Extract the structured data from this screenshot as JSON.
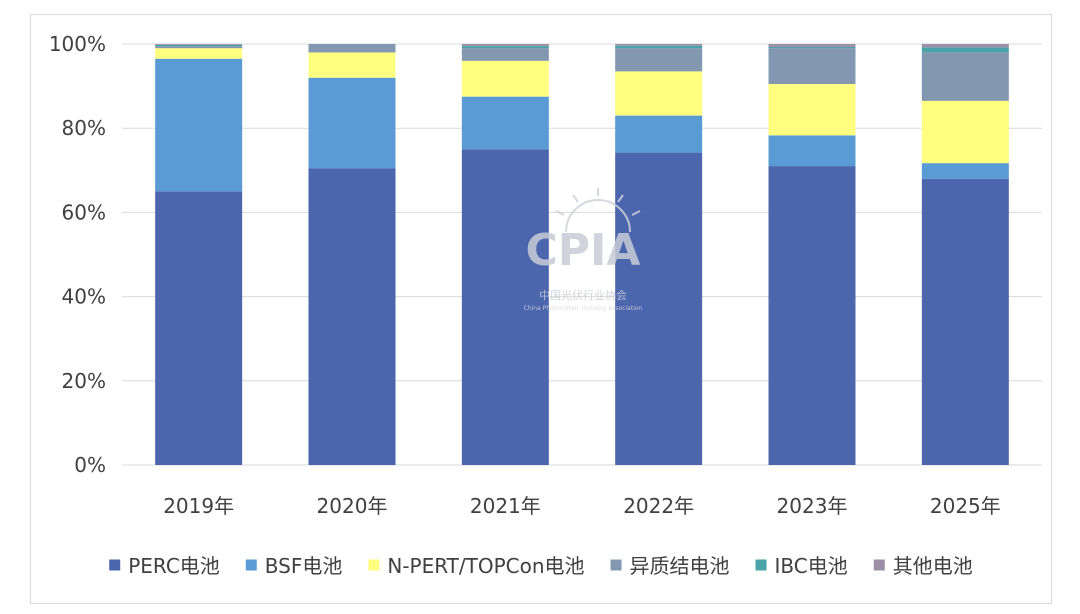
{
  "chart_data": {
    "type": "bar",
    "stacked": true,
    "percent": true,
    "categories": [
      "2019年",
      "2020年",
      "2021年",
      "2022年",
      "2023年",
      "2025年"
    ],
    "series": [
      {
        "name": "PERC电池",
        "color": "#4b66ad",
        "values": [
          65.0,
          70.5,
          75.0,
          74.2,
          71.0,
          68.0
        ]
      },
      {
        "name": "BSF电池",
        "color": "#5b9bd5",
        "values": [
          31.5,
          21.5,
          12.5,
          8.8,
          7.3,
          3.7
        ]
      },
      {
        "name": "N-PERT/TOPCon电池",
        "color": "#ffff80",
        "values": [
          2.5,
          6.0,
          8.5,
          10.5,
          12.2,
          14.8
        ]
      },
      {
        "name": "异质结电池",
        "color": "#8497b0",
        "values": [
          0.5,
          2.0,
          3.0,
          5.5,
          8.5,
          11.5
        ]
      },
      {
        "name": "IBC电池",
        "color": "#4aa3a6",
        "values": [
          0.3,
          0.0,
          0.5,
          0.6,
          0.3,
          1.2
        ]
      },
      {
        "name": "其他电池",
        "color": "#9e8fa8",
        "values": [
          0.2,
          0.0,
          0.5,
          0.4,
          0.7,
          0.8
        ]
      }
    ],
    "y_ticks": [
      "0%",
      "20%",
      "40%",
      "60%",
      "80%",
      "100%"
    ],
    "ylim": [
      0,
      100
    ],
    "grid": true,
    "legend_position": "bottom",
    "title": "",
    "xlabel": "",
    "ylabel": ""
  },
  "watermark": {
    "logo_text": "CPIA",
    "name_cn": "中国光伏行业协会",
    "name_en": "China Photovoltaic Industry Association"
  }
}
